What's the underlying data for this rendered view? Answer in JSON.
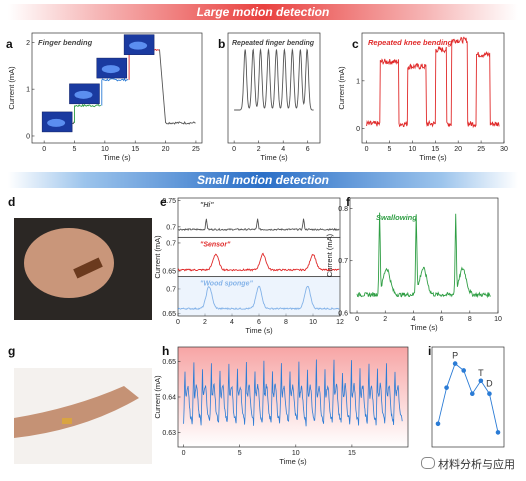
{
  "banners": {
    "top": "Large motion detection",
    "middle": "Small motion detection"
  },
  "watermark": "材料分析与应用",
  "photos": {
    "d": "neck-sensor-photo",
    "g": "wrist-pulse-photo"
  },
  "panel_letters": [
    "a",
    "b",
    "c",
    "d",
    "e",
    "f",
    "g",
    "h",
    "i"
  ],
  "colors": {
    "red": "#e02a2a",
    "green": "#2f9e44",
    "blue": "#2a7bd5",
    "gray": "#555555",
    "black": "#222222"
  },
  "chart_data": [
    {
      "panel": "a",
      "type": "line",
      "title": "Finger bending",
      "xlabel": "Time (s)",
      "ylabel": "Current (mA)",
      "xlim": [
        -2,
        26
      ],
      "ylim": [
        -0.15,
        2.2
      ],
      "xticks": [
        0,
        5,
        10,
        15,
        20,
        25
      ],
      "yticks": [
        0,
        1,
        2
      ],
      "series": [
        {
          "color": "#555555",
          "x": [
            0,
            5
          ],
          "y": [
            0.28,
            0.28
          ]
        },
        {
          "color": "#2f9e44",
          "x": [
            5,
            9.5
          ],
          "y": [
            0.65,
            0.65
          ]
        },
        {
          "color": "#2a7bd5",
          "x": [
            9.5,
            14
          ],
          "y": [
            1.2,
            1.2
          ]
        },
        {
          "color": "#e02a2a",
          "x": [
            14,
            19
          ],
          "y": [
            1.85,
            1.85
          ]
        },
        {
          "color": "#555555",
          "x": [
            20,
            25
          ],
          "y": [
            0.28,
            0.28
          ]
        }
      ]
    },
    {
      "panel": "b",
      "type": "line",
      "title": "Repeated finger bending",
      "xlabel": "Time (s)",
      "ylabel": "",
      "xlim": [
        -0.5,
        7
      ],
      "ylim": [
        0,
        1
      ],
      "xticks": [
        0,
        2,
        4,
        6
      ],
      "yticks": [],
      "series": [
        {
          "color": "#555555",
          "peaks": [
            0.9,
            1.55,
            2.15,
            2.8,
            3.45,
            4.1,
            4.75,
            5.4,
            5.95
          ],
          "base": 0.3,
          "peak": 0.85
        }
      ]
    },
    {
      "panel": "c",
      "type": "line",
      "title": "Repeated knee bending",
      "xlabel": "Time (s)",
      "ylabel": "Current (mA)",
      "xlim": [
        -1,
        30
      ],
      "ylim": [
        -0.3,
        2.0
      ],
      "xticks": [
        0,
        5,
        10,
        15,
        20,
        25,
        30
      ],
      "yticks": [
        0,
        1
      ],
      "series": [
        {
          "color": "#e02a2a",
          "plateaus": [
            [
              3,
              7,
              1.4
            ],
            [
              9,
              13,
              1.3
            ],
            [
              15,
              17.5,
              1.65
            ],
            [
              18.5,
              22,
              1.85
            ],
            [
              24,
              27,
              1.55
            ]
          ],
          "base": 0.1
        }
      ]
    },
    {
      "panel": "e",
      "type": "line",
      "title": "",
      "xlabel": "Time (s)",
      "ylabel": "Current (mA)",
      "xlim": [
        0,
        12
      ],
      "xticks": [
        0,
        2,
        4,
        6,
        8,
        10,
        12
      ],
      "subplots": [
        {
          "label": "\"Hi\"",
          "color": "#555555",
          "ylim": [
            0.68,
            0.755
          ],
          "yticks": [
            0.7,
            0.75
          ],
          "base": 0.695,
          "peaks": [
            2.1,
            5.9,
            9.3
          ],
          "amp": 0.02
        },
        {
          "label": "\"Sensor\"",
          "color": "#e02a2a",
          "ylim": [
            0.64,
            0.71
          ],
          "yticks": [
            0.65,
            0.7
          ],
          "base": 0.652,
          "peaks": [
            2.8,
            6.3,
            10.0
          ],
          "amp": 0.028
        },
        {
          "label": "\"Wood sponge\"",
          "color": "#2a7bd5",
          "ylim": [
            0.645,
            0.725
          ],
          "yticks": [
            0.65,
            0.7
          ],
          "base": 0.66,
          "peaks": [
            2.3,
            6.0,
            9.6
          ],
          "amp": 0.045
        }
      ]
    },
    {
      "panel": "f",
      "type": "line",
      "title": "Swallowing",
      "xlabel": "Time (s)",
      "ylabel": "Current (mA)",
      "xlim": [
        -0.5,
        10
      ],
      "ylim": [
        0.6,
        0.82
      ],
      "xticks": [
        0,
        2,
        4,
        6,
        8,
        10
      ],
      "yticks": [
        0.6,
        0.7,
        0.8
      ],
      "series": [
        {
          "color": "#2f9e44",
          "base": 0.635,
          "peaks": [
            1.6,
            4.2,
            7.0
          ],
          "amp": 0.15
        }
      ]
    },
    {
      "panel": "h",
      "type": "line",
      "title": "",
      "xlabel": "Time (s)",
      "ylabel": "Current (mA)",
      "xlim": [
        -0.5,
        20
      ],
      "ylim": [
        0.626,
        0.654
      ],
      "xticks": [
        0,
        5,
        10,
        15
      ],
      "yticks": [
        0.63,
        0.64,
        0.65
      ],
      "series": [
        {
          "color": "#2a7bd5",
          "period": 0.78,
          "low": 0.6325,
          "high": 0.65
        }
      ]
    },
    {
      "panel": "i",
      "type": "scatter",
      "title": "",
      "xlabel": "Time (s)",
      "ylabel": "",
      "labels": [
        "P",
        "T",
        "D"
      ],
      "series": [
        {
          "color": "#2a7bd5",
          "y": [
            0.2,
            0.62,
            0.9,
            0.82,
            0.55,
            0.7,
            0.55,
            0.1
          ]
        }
      ]
    }
  ]
}
